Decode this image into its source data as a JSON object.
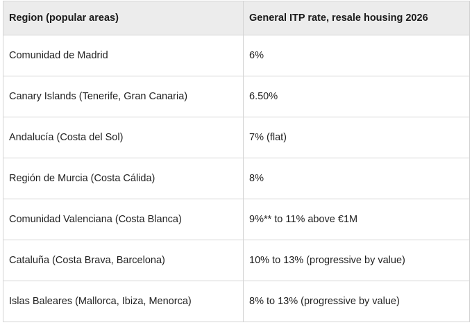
{
  "table": {
    "headers": [
      "Region (popular areas)",
      "General ITP rate, resale housing 2026"
    ],
    "rows": [
      [
        "Comunidad de Madrid",
        "6%"
      ],
      [
        "Canary Islands (Tenerife, Gran Canaria)",
        "6.50%"
      ],
      [
        "Andalucía (Costa del Sol)",
        "7% (flat)"
      ],
      [
        "Región de Murcia (Costa Cálida)",
        "8%"
      ],
      [
        "Comunidad Valenciana (Costa Blanca)",
        "9%** to 11% above €1M"
      ],
      [
        "Cataluña (Costa Brava, Barcelona)",
        "10% to 13% (progressive by value)"
      ],
      [
        "Islas Baleares (Mallorca, Ibiza, Menorca)",
        "8% to 13% (progressive by value)"
      ]
    ]
  }
}
